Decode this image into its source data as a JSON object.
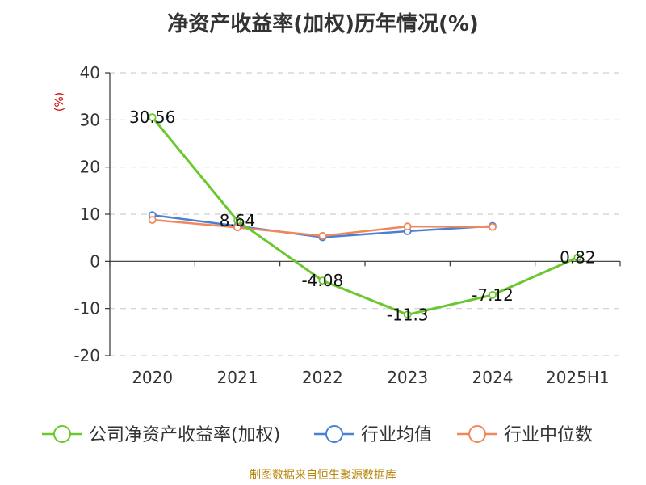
{
  "chart_data": {
    "type": "line",
    "title": "净资产收益率(加权)历年情况(%)",
    "unit_label": "(%)",
    "categories": [
      "2020",
      "2021",
      "2022",
      "2023",
      "2024",
      "2025H1"
    ],
    "ylim": [
      -20,
      40
    ],
    "yticks": [
      -20,
      -10,
      0,
      10,
      20,
      30,
      40
    ],
    "grid": true,
    "legend_position": "bottom",
    "series": [
      {
        "name": "公司净资产收益率(加权)",
        "color": "#6ac72e",
        "values": [
          30.56,
          8.64,
          -4.08,
          -11.3,
          -7.12,
          0.82
        ],
        "labels": [
          "30.56",
          "8.64",
          "-4.08",
          "-11.3",
          "-7.12",
          "0.82"
        ]
      },
      {
        "name": "行业均值",
        "color": "#4a7fd6",
        "values": [
          9.8,
          7.5,
          5.1,
          6.4,
          7.5,
          null
        ]
      },
      {
        "name": "行业中位数",
        "color": "#f0885a",
        "values": [
          8.8,
          7.2,
          5.4,
          7.4,
          7.3,
          null
        ]
      }
    ]
  },
  "source": "制图数据来自恒生聚源数据库"
}
